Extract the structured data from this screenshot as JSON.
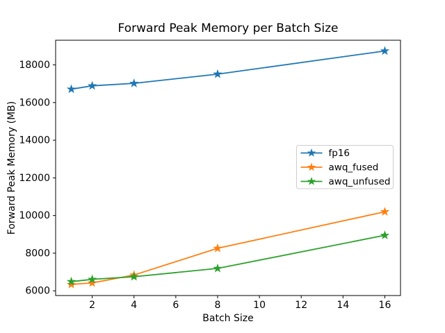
{
  "chart_data": {
    "type": "line",
    "title": "Forward Peak Memory per Batch Size",
    "xlabel": "Batch Size",
    "ylabel": "Forward Peak Memory (MB)",
    "x": [
      1,
      2,
      4,
      8,
      16
    ],
    "series": [
      {
        "name": "fp16",
        "color": "#1f77b4",
        "marker": "star",
        "values": [
          16710,
          16890,
          17020,
          17510,
          18740
        ]
      },
      {
        "name": "awq_fused",
        "color": "#ff7f0e",
        "marker": "star",
        "values": [
          6340,
          6420,
          6840,
          8260,
          10200
        ]
      },
      {
        "name": "awq_unfused",
        "color": "#2ca02c",
        "marker": "star",
        "values": [
          6490,
          6610,
          6750,
          7190,
          8950
        ]
      }
    ],
    "xticks": [
      2,
      4,
      6,
      8,
      10,
      12,
      14,
      16
    ],
    "yticks": [
      6000,
      8000,
      10000,
      12000,
      14000,
      16000,
      18000
    ],
    "xlim": [
      0.25,
      16.75
    ],
    "ylim": [
      5750,
      19310
    ],
    "grid": false,
    "legend_position": "center-right",
    "legend_border_color": "#cccccc",
    "axis_color": "#000000",
    "background_color": "#ffffff"
  }
}
